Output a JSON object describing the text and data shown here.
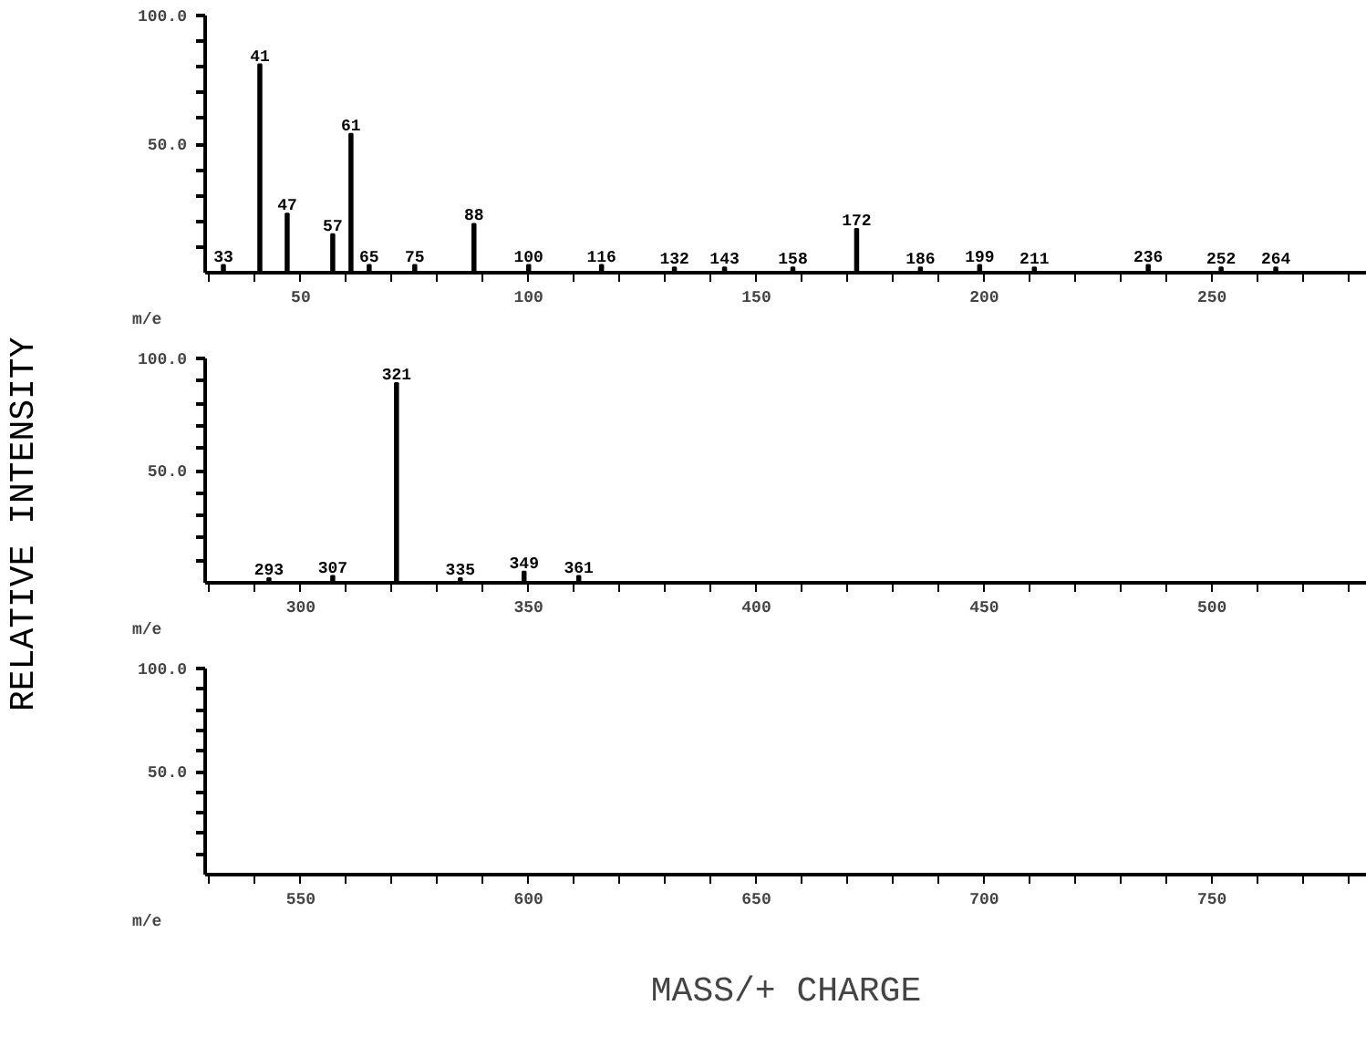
{
  "chart_data": [
    {
      "type": "bar",
      "x": [
        33,
        41,
        47,
        57,
        61,
        65,
        75,
        88,
        100,
        116,
        132,
        143,
        158,
        172,
        186,
        199,
        211,
        236,
        252,
        264
      ],
      "values": [
        3,
        81,
        23,
        15,
        54,
        3,
        3,
        19,
        3,
        3,
        2,
        2,
        2,
        17,
        2,
        3,
        2,
        3,
        2,
        2
      ],
      "color": "#000000",
      "xlim": [
        29,
        284
      ],
      "ylim": [
        0,
        100
      ],
      "xticks": [
        {
          "value": 30,
          "label": null
        },
        {
          "value": 40,
          "label": null
        },
        50,
        {
          "value": 60,
          "label": null
        },
        {
          "value": 70,
          "label": null
        },
        {
          "value": 80,
          "label": null
        },
        {
          "value": 90,
          "label": null
        },
        100,
        {
          "value": 110,
          "label": null
        },
        {
          "value": 120,
          "label": null
        },
        {
          "value": 130,
          "label": null
        },
        {
          "value": 140,
          "label": null
        },
        150,
        {
          "value": 160,
          "label": null
        },
        {
          "value": 170,
          "label": null
        },
        {
          "value": 180,
          "label": null
        },
        {
          "value": 190,
          "label": null
        },
        200,
        {
          "value": 210,
          "label": null
        },
        {
          "value": 220,
          "label": null
        },
        {
          "value": 230,
          "label": null
        },
        {
          "value": 240,
          "label": null
        },
        250,
        {
          "value": 260,
          "label": null
        },
        {
          "value": 270,
          "label": null
        },
        {
          "value": 280,
          "label": null
        }
      ],
      "yticks": [
        {
          "value": 10,
          "label": null
        },
        {
          "value": 20,
          "label": null
        },
        {
          "value": 30,
          "label": null
        },
        {
          "value": 40,
          "label": null
        },
        {
          "value": 50,
          "label": "50.0"
        },
        {
          "value": 60,
          "label": null
        },
        {
          "value": 70,
          "label": null
        },
        {
          "value": 80,
          "label": null
        },
        {
          "value": 90,
          "label": null
        },
        {
          "value": 100,
          "label": "100.0"
        }
      ],
      "annotations": [
        "m/e",
        {
          "text": "33",
          "x": 33,
          "y": 3
        },
        {
          "text": "41",
          "x": 41,
          "y": 81
        },
        {
          "text": "47",
          "x": 47,
          "y": 23
        },
        {
          "text": "57",
          "x": 57,
          "y": 15
        },
        {
          "text": "61",
          "x": 61,
          "y": 54
        },
        {
          "text": "65",
          "x": 65,
          "y": 3
        },
        {
          "text": "75",
          "x": 75,
          "y": 3
        },
        {
          "text": "88",
          "x": 88,
          "y": 19
        },
        {
          "text": "100",
          "x": 100,
          "y": 3
        },
        {
          "text": "116",
          "x": 116,
          "y": 3
        },
        {
          "text": "132",
          "x": 132,
          "y": 2
        },
        {
          "text": "143",
          "x": 143,
          "y": 2
        },
        {
          "text": "158",
          "x": 158,
          "y": 2
        },
        {
          "text": "172",
          "x": 172,
          "y": 17
        },
        {
          "text": "186",
          "x": 186,
          "y": 2
        },
        {
          "text": "199",
          "x": 199,
          "y": 3
        },
        {
          "text": "211",
          "x": 211,
          "y": 2
        },
        {
          "text": "236",
          "x": 236,
          "y": 3
        },
        {
          "text": "252",
          "x": 252,
          "y": 2
        },
        {
          "text": "264",
          "x": 264,
          "y": 2
        }
      ],
      "grid": false
    },
    {
      "type": "bar",
      "x": [
        293,
        307,
        321,
        335,
        349,
        361
      ],
      "values": [
        2,
        3,
        89,
        2,
        5,
        3
      ],
      "color": "#000000",
      "xlim": [
        279,
        534
      ],
      "ylim": [
        0,
        100
      ],
      "xticks": [
        {
          "value": 280,
          "label": null
        },
        {
          "value": 290,
          "label": null
        },
        300,
        {
          "value": 310,
          "label": null
        },
        {
          "value": 320,
          "label": null
        },
        {
          "value": 330,
          "label": null
        },
        {
          "value": 340,
          "label": null
        },
        350,
        {
          "value": 360,
          "label": null
        },
        {
          "value": 370,
          "label": null
        },
        {
          "value": 380,
          "label": null
        },
        {
          "value": 390,
          "label": null
        },
        400,
        {
          "value": 410,
          "label": null
        },
        {
          "value": 420,
          "label": null
        },
        {
          "value": 430,
          "label": null
        },
        {
          "value": 440,
          "label": null
        },
        450,
        {
          "value": 460,
          "label": null
        },
        {
          "value": 470,
          "label": null
        },
        {
          "value": 480,
          "label": null
        },
        {
          "value": 490,
          "label": null
        },
        500,
        {
          "value": 510,
          "label": null
        },
        {
          "value": 520,
          "label": null
        },
        {
          "value": 530,
          "label": null
        }
      ],
      "yticks": [
        {
          "value": 10,
          "label": null
        },
        {
          "value": 20,
          "label": null
        },
        {
          "value": 30,
          "label": null
        },
        {
          "value": 40,
          "label": null
        },
        {
          "value": 50,
          "label": "50.0"
        },
        {
          "value": 60,
          "label": null
        },
        {
          "value": 70,
          "label": null
        },
        {
          "value": 80,
          "label": null
        },
        {
          "value": 90,
          "label": null
        },
        {
          "value": 100,
          "label": "100.0"
        }
      ],
      "ylabel": "RELATIVE INTENSITY",
      "annotations": [
        "m/e",
        {
          "text": "293",
          "x": 293,
          "y": 2
        },
        {
          "text": "307",
          "x": 307,
          "y": 3
        },
        {
          "text": "321",
          "x": 321,
          "y": 89
        },
        {
          "text": "335",
          "x": 335,
          "y": 2
        },
        {
          "text": "349",
          "x": 349,
          "y": 5
        },
        {
          "text": "361",
          "x": 361,
          "y": 3
        }
      ],
      "grid": false
    },
    {
      "type": "bar",
      "color": "#000000",
      "xlim": [
        529,
        784
      ],
      "ylim": [
        0,
        100
      ],
      "xticks": [
        {
          "value": 530,
          "label": null
        },
        {
          "value": 540,
          "label": null
        },
        550,
        {
          "value": 560,
          "label": null
        },
        {
          "value": 570,
          "label": null
        },
        {
          "value": 580,
          "label": null
        },
        {
          "value": 590,
          "label": null
        },
        600,
        {
          "value": 610,
          "label": null
        },
        {
          "value": 620,
          "label": null
        },
        {
          "value": 630,
          "label": null
        },
        {
          "value": 640,
          "label": null
        },
        650,
        {
          "value": 660,
          "label": null
        },
        {
          "value": 670,
          "label": null
        },
        {
          "value": 680,
          "label": null
        },
        {
          "value": 690,
          "label": null
        },
        700,
        {
          "value": 710,
          "label": null
        },
        {
          "value": 720,
          "label": null
        },
        {
          "value": 730,
          "label": null
        },
        {
          "value": 740,
          "label": null
        },
        750,
        {
          "value": 760,
          "label": null
        },
        {
          "value": 770,
          "label": null
        },
        {
          "value": 780,
          "label": null
        }
      ],
      "yticks": [
        {
          "value": 10,
          "label": null
        },
        {
          "value": 20,
          "label": null
        },
        {
          "value": 30,
          "label": null
        },
        {
          "value": 40,
          "label": null
        },
        {
          "value": 50,
          "label": "50.0"
        },
        {
          "value": 60,
          "label": null
        },
        {
          "value": 70,
          "label": null
        },
        {
          "value": 80,
          "label": null
        },
        {
          "value": 90,
          "label": null
        },
        {
          "value": 100,
          "label": "100.0"
        }
      ],
      "xlabel": "MASS/+ CHARGE",
      "annotations": [
        "m/e"
      ],
      "grid": false
    }
  ]
}
